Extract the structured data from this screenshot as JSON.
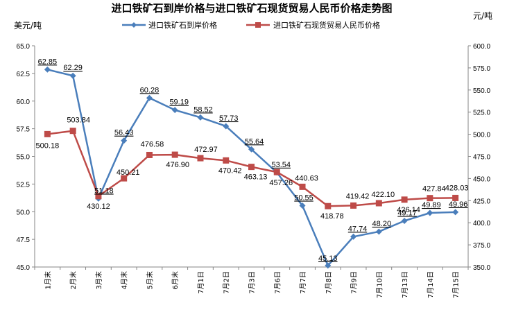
{
  "chart_data": {
    "type": "line",
    "title": "进口铁矿石到岸价格与进口铁矿石现货贸易人民币价格走势图",
    "ylabel_left": "美元/吨",
    "ylabel_right": "元/吨",
    "categories": [
      "1月末",
      "2月末",
      "3月末",
      "4月末",
      "5月末",
      "6月末",
      "7月1日",
      "7月2日",
      "7月3日",
      "7月6日",
      "7月7日",
      "7月8日",
      "7月9日",
      "7月10日",
      "7月13日",
      "7月14日",
      "7月15日"
    ],
    "ylim_left": [
      45.0,
      65.0
    ],
    "ylim_right": [
      350.0,
      600.0
    ],
    "yticks_left": [
      "45.0",
      "47.5",
      "50.0",
      "52.5",
      "55.0",
      "57.5",
      "60.0",
      "62.5",
      "65.0"
    ],
    "yticks_right": [
      "350.0",
      "375.0",
      "400.0",
      "425.0",
      "450.0",
      "475.0",
      "500.0",
      "525.0",
      "550.0",
      "575.0",
      "600.0"
    ],
    "legend_position": "top",
    "grid": false,
    "series": [
      {
        "name": "进口铁矿石到岸价格",
        "axis": "left",
        "color": "#4A7EBB",
        "marker": "diamond",
        "values": [
          62.85,
          62.29,
          51.18,
          56.43,
          60.28,
          59.19,
          58.52,
          57.73,
          55.64,
          53.54,
          50.55,
          45.13,
          47.74,
          48.2,
          49.17,
          49.89,
          49.96
        ],
        "labels": [
          "62.85",
          "62.29",
          "51.18",
          "56.43",
          "60.28",
          "59.19",
          "58.52",
          "57.73",
          "55.64",
          "53.54",
          "50.55",
          "45.13",
          "47.74",
          "48.20",
          "49.17",
          "49.89",
          "49.96"
        ]
      },
      {
        "name": "进口铁矿石现货贸易人民币价格",
        "axis": "right",
        "color": "#BE4B48",
        "marker": "square",
        "values": [
          500.18,
          503.84,
          430.12,
          450.21,
          476.58,
          476.9,
          472.97,
          470.42,
          463.13,
          457.26,
          440.63,
          418.78,
          419.42,
          422.1,
          426.14,
          427.84,
          428.03
        ],
        "labels": [
          "500.18",
          "503.84",
          "430.12",
          "450.21",
          "476.58",
          "476.90",
          "472.97",
          "470.42",
          "463.13",
          "457.26",
          "440.63",
          "418.78",
          "419.42",
          "422.10",
          "426.14",
          "427.84",
          "428.03"
        ]
      }
    ]
  }
}
